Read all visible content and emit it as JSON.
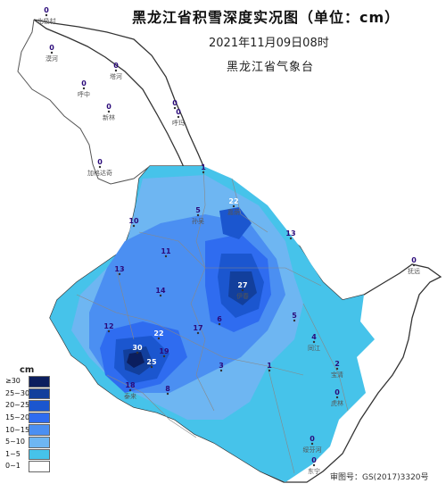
{
  "header": {
    "title": "黑龙江省积雪深度实况图（单位：cm）",
    "date": "2021年11月09日08时",
    "org": "黑龙江省气象台"
  },
  "legend": {
    "unit": "cm",
    "items": [
      {
        "label": "≥30",
        "color": "#0b1e5e"
      },
      {
        "label": "25~30",
        "color": "#123f9c"
      },
      {
        "label": "20~25",
        "color": "#1b56cf"
      },
      {
        "label": "15~20",
        "color": "#2f6cf0"
      },
      {
        "label": "10~15",
        "color": "#4b8ff2"
      },
      {
        "label": "5~10",
        "color": "#6eb6f2"
      },
      {
        "label": "1~5",
        "color": "#46c3ea"
      },
      {
        "label": "0~1",
        "color": "#ffffff"
      }
    ]
  },
  "approval": "审图号：GS(2017)3320号",
  "stations": [
    {
      "value": "0",
      "name": "北极村"
    },
    {
      "value": "0",
      "name": "漠河"
    },
    {
      "value": "0",
      "name": "塔河"
    },
    {
      "value": "0",
      "name": "呼中"
    },
    {
      "value": "0",
      "name": "新林"
    },
    {
      "value": "0",
      "name": ""
    },
    {
      "value": "0",
      "name": "呼玛"
    },
    {
      "value": "0",
      "name": "加格达奇"
    },
    {
      "value": "1",
      "name": ""
    },
    {
      "value": "22",
      "name": "嘉荫"
    },
    {
      "value": "5",
      "name": "孙吴"
    },
    {
      "value": "13",
      "name": ""
    },
    {
      "value": "10",
      "name": ""
    },
    {
      "value": "0",
      "name": "抚远"
    },
    {
      "value": "27",
      "name": "伊春"
    },
    {
      "value": "30",
      "name": ""
    },
    {
      "value": "25",
      "name": ""
    },
    {
      "value": "19",
      "name": ""
    },
    {
      "value": "18",
      "name": "泰来"
    },
    {
      "value": "17",
      "name": ""
    },
    {
      "value": "13",
      "name": ""
    },
    {
      "value": "14",
      "name": ""
    },
    {
      "value": "22",
      "name": ""
    },
    {
      "value": "12",
      "name": ""
    },
    {
      "value": "11",
      "name": ""
    },
    {
      "value": "6",
      "name": ""
    },
    {
      "value": "5",
      "name": ""
    },
    {
      "value": "3",
      "name": ""
    },
    {
      "value": "1",
      "name": ""
    },
    {
      "value": "8",
      "name": ""
    },
    {
      "value": "4",
      "name": "同江"
    },
    {
      "value": "2",
      "name": "宝清"
    },
    {
      "value": "0",
      "name": "虎林"
    },
    {
      "value": "0",
      "name": "东宁"
    },
    {
      "value": "0",
      "name": "绥芬河"
    }
  ]
}
